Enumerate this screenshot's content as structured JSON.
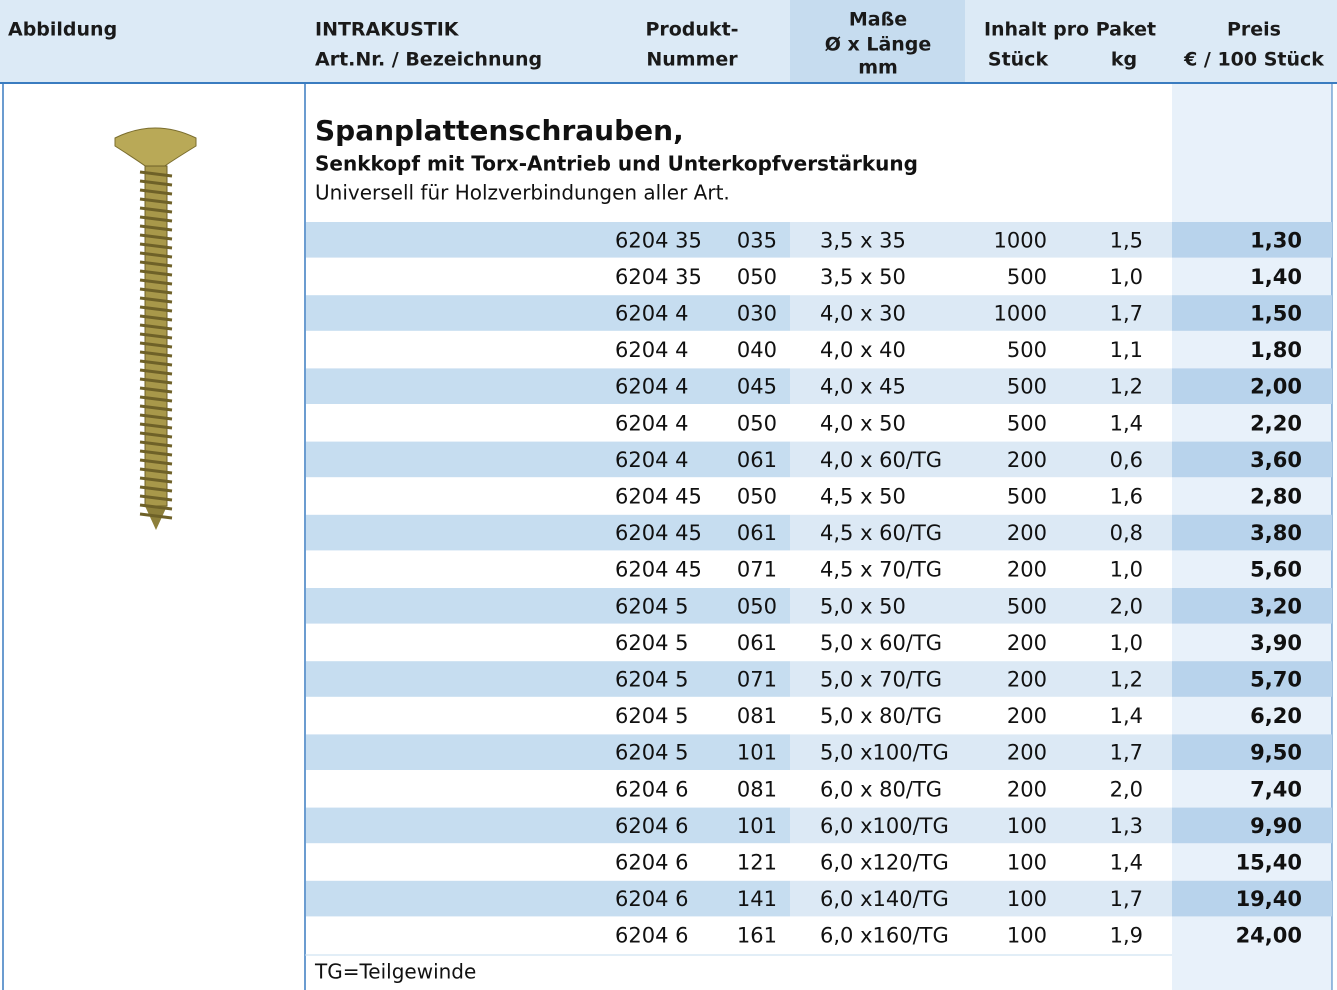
{
  "header": {
    "abbildung": "Abbildung",
    "brand": "INTRAKUSTIK",
    "artnr": "Art.Nr. / Bezeichnung",
    "produkt1": "Produkt-",
    "produkt2": "Nummer",
    "masse1": "Maße",
    "masse2": "Ø x Länge",
    "masse3": "mm",
    "inhalt": "Inhalt pro Paket",
    "stueck": "Stück",
    "kg": "kg",
    "preis1": "Preis",
    "preis2": "€ / 100 Stück"
  },
  "section": {
    "title": "Spanplattenschrauben,",
    "subtitle": "Senkkopf mit Torx-Antrieb und Unterkopfverstärkung",
    "description": "Universell für Holzverbindungen aller Art."
  },
  "rows": [
    [
      "6204 35",
      "035",
      "3,5 x 35",
      "1000",
      "1,5",
      "1,30"
    ],
    [
      "6204 35",
      "050",
      "3,5 x 50",
      "500",
      "1,0",
      "1,40"
    ],
    [
      "6204 4",
      "030",
      "4,0 x 30",
      "1000",
      "1,7",
      "1,50"
    ],
    [
      "6204 4",
      "040",
      "4,0 x 40",
      "500",
      "1,1",
      "1,80"
    ],
    [
      "6204 4",
      "045",
      "4,0 x 45",
      "500",
      "1,2",
      "2,00"
    ],
    [
      "6204 4",
      "050",
      "4,0 x 50",
      "500",
      "1,4",
      "2,20"
    ],
    [
      "6204 4",
      "061",
      "4,0 x 60/TG",
      "200",
      "0,6",
      "3,60"
    ],
    [
      "6204 45",
      "050",
      "4,5 x 50",
      "500",
      "1,6",
      "2,80"
    ],
    [
      "6204 45",
      "061",
      "4,5 x 60/TG",
      "200",
      "0,8",
      "3,80"
    ],
    [
      "6204 45",
      "071",
      "4,5 x 70/TG",
      "200",
      "1,0",
      "5,60"
    ],
    [
      "6204 5",
      "050",
      "5,0 x 50",
      "500",
      "2,0",
      "3,20"
    ],
    [
      "6204 5",
      "061",
      "5,0 x 60/TG",
      "200",
      "1,0",
      "3,90"
    ],
    [
      "6204 5",
      "071",
      "5,0 x 70/TG",
      "200",
      "1,2",
      "5,70"
    ],
    [
      "6204 5",
      "081",
      "5,0 x 80/TG",
      "200",
      "1,4",
      "6,20"
    ],
    [
      "6204 5",
      "101",
      "5,0 x100/TG",
      "200",
      "1,7",
      "9,50"
    ],
    [
      "6204 6",
      "081",
      "6,0 x 80/TG",
      "200",
      "2,0",
      "7,40"
    ],
    [
      "6204 6",
      "101",
      "6,0 x100/TG",
      "100",
      "1,3",
      "9,90"
    ],
    [
      "6204 6",
      "121",
      "6,0 x120/TG",
      "100",
      "1,4",
      "15,40"
    ],
    [
      "6204 6",
      "141",
      "6,0 x140/TG",
      "100",
      "1,7",
      "19,40"
    ],
    [
      "6204 6",
      "161",
      "6,0 x160/TG",
      "100",
      "1,9",
      "24,00"
    ]
  ],
  "footnote": "TG=Teilgewinde"
}
